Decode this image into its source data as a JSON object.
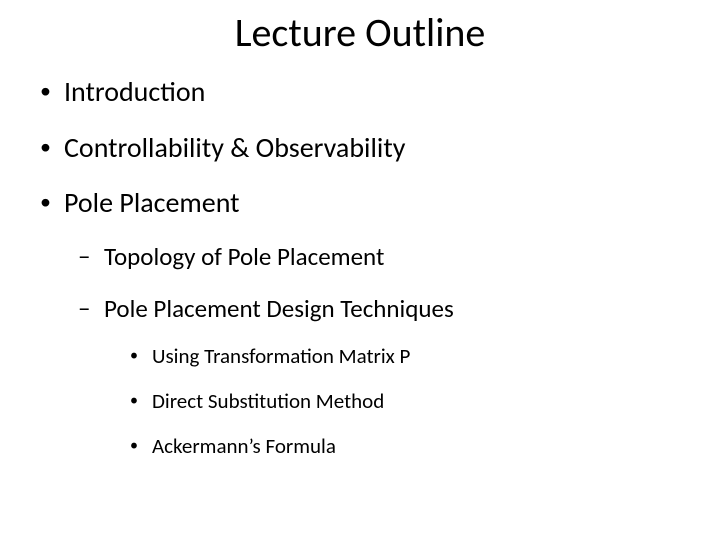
{
  "title": "Lecture Outline",
  "typography": {
    "font_family": "Calibri",
    "title_fontsize_pt": 40,
    "lvl1_fontsize_pt": 28,
    "lvl2_fontsize_pt": 25,
    "lvl3_fontsize_pt": 21,
    "text_color": "#000000",
    "background_color": "#ffffff"
  },
  "bullets_lvl1": {
    "b0": "Introduction",
    "b1": "Controllability & Observability",
    "b2": "Pole Placement"
  },
  "bullets_lvl2": {
    "b0": "Topology of Pole Placement",
    "b1": "Pole Placement Design Techniques"
  },
  "bullets_lvl3": {
    "b0": "Using Transformation Matrix P",
    "b1": "Direct Substitution Method",
    "b2": "Ackermann’s Formula"
  },
  "markers": {
    "lvl1": "•",
    "lvl2": "–",
    "lvl3": "•"
  }
}
